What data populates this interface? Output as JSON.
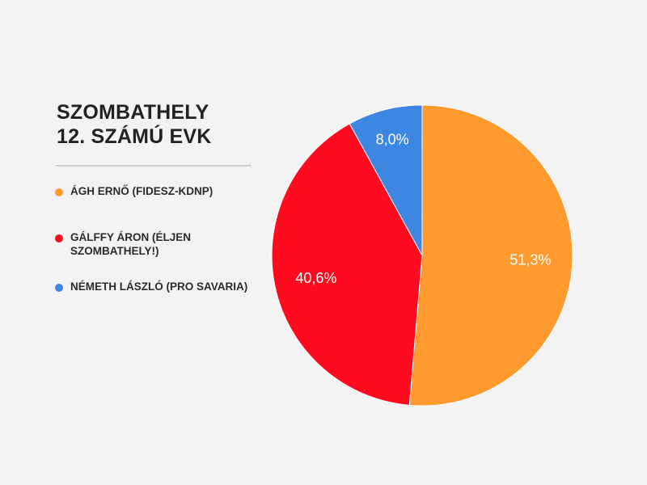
{
  "chart_data": {
    "type": "pie",
    "title_lines": [
      "SZOMBATHELY",
      "12. SZÁMÚ EVK"
    ],
    "slices": [
      {
        "label": "ÁGH ERNŐ (FIDESZ-KDNP)",
        "value": 51.3,
        "value_label": "51,3%",
        "color": "#ff9a2e"
      },
      {
        "label": "GÁLFFY ÁRON (ÉLJEN SZOMBATHELY!)",
        "value": 40.6,
        "value_label": "40,6%",
        "color": "#ff0a1e"
      },
      {
        "label": "NÉMETH LÁSZLÓ (PRO SAVARIA)",
        "value": 8.0,
        "value_label": "8,0%",
        "color": "#3d86e2"
      }
    ],
    "start_angle": "top",
    "direction": "clockwise",
    "legend_position": "left"
  }
}
